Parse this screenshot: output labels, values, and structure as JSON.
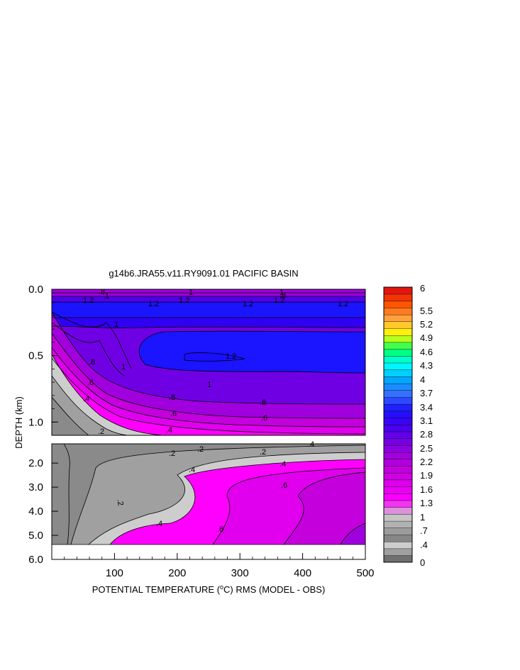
{
  "chart_data": {
    "type": "heatmap",
    "title": "g14b6.JRA55.v11.RY9091.01 PACIFIC BASIN",
    "xlabel_prefix": "POTENTIAL TEMPERATURE (",
    "xlabel_unit_sup": "o",
    "xlabel_suffix": "C) RMS (MODEL - OBS)",
    "ylabel": "DEPTH (km)",
    "xlim": [
      0,
      500
    ],
    "x_ticks": [
      "100",
      "200",
      "300",
      "400",
      "500"
    ],
    "upper_panel": {
      "ylim": [
        0.0,
        1.1
      ],
      "y_ticks": [
        "0.0",
        "0.5",
        "1.0"
      ]
    },
    "lower_panel": {
      "ylim": [
        1.2,
        6.0
      ],
      "y_ticks": [
        "2.0",
        "3.0",
        "4.0",
        "5.0",
        "6.0"
      ]
    },
    "contour_labels_upper": [
      ".8",
      "1",
      "1.2",
      "1.2",
      "1.2",
      "1.2",
      "1.2",
      "1.2",
      "1",
      "1",
      ".8",
      ".6",
      ".4",
      "1.2",
      "1",
      ".8",
      ".8",
      ".6",
      ".6",
      ".4",
      ".2",
      "1",
      "1",
      ".8"
    ],
    "contour_labels_lower": [
      ".2",
      ".2",
      ".2",
      ".4",
      ".4",
      ".4",
      ".6",
      ".2",
      ".4",
      ".6",
      "4"
    ],
    "colorbar": {
      "labels": [
        "6",
        "5.5",
        "5.2",
        "4.9",
        "4.6",
        "4.3",
        "4",
        "3.7",
        "3.4",
        "3.1",
        "2.8",
        "2.5",
        "2.2",
        "1.9",
        "1.6",
        "1.3",
        "1",
        ".7",
        ".4",
        "0"
      ],
      "bands": 40,
      "colors_low_to_high": [
        "#707070",
        "#a0a0a0",
        "#cdcdcd",
        "#ff00ff",
        "#e000ee",
        "#c400dd",
        "#a000dd",
        "#7000e4",
        "#4000f0",
        "#1a14ff",
        "#3a6cff",
        "#00aaff",
        "#00ffff",
        "#00ff64",
        "#ffff00",
        "#ffaa44",
        "#ff5500",
        "#e01010",
        "#c00000"
      ]
    }
  }
}
